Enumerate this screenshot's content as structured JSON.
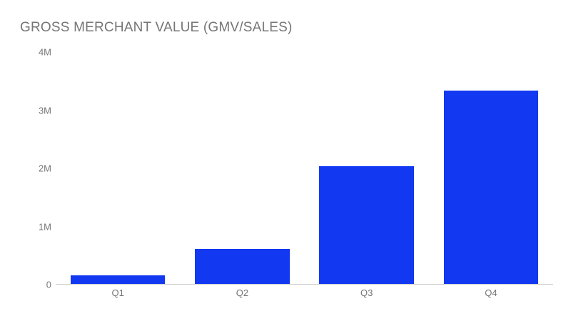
{
  "chart_data": {
    "type": "bar",
    "title": "GROSS MERCHANT VALUE (GMV/SALES)",
    "categories": [
      "Q1",
      "Q2",
      "Q3",
      "Q4"
    ],
    "values": [
      150000,
      600000,
      2030000,
      3340000
    ],
    "series_name": "GMV/Sales",
    "xlabel": "",
    "ylabel": "",
    "ylim": [
      0,
      4000000
    ],
    "y_ticks": [
      {
        "label": "0",
        "value": 0
      },
      {
        "label": "1M",
        "value": 1000000
      },
      {
        "label": "2M",
        "value": 2000000
      },
      {
        "label": "3M",
        "value": 3000000
      },
      {
        "label": "4M",
        "value": 4000000
      }
    ],
    "grid": false,
    "legend_position": "none",
    "bar_color": "#1238f2",
    "axis_line_color": "#cccccc",
    "label_color": "#757575",
    "title_color": "#757575",
    "background_color": "#ffffff"
  }
}
